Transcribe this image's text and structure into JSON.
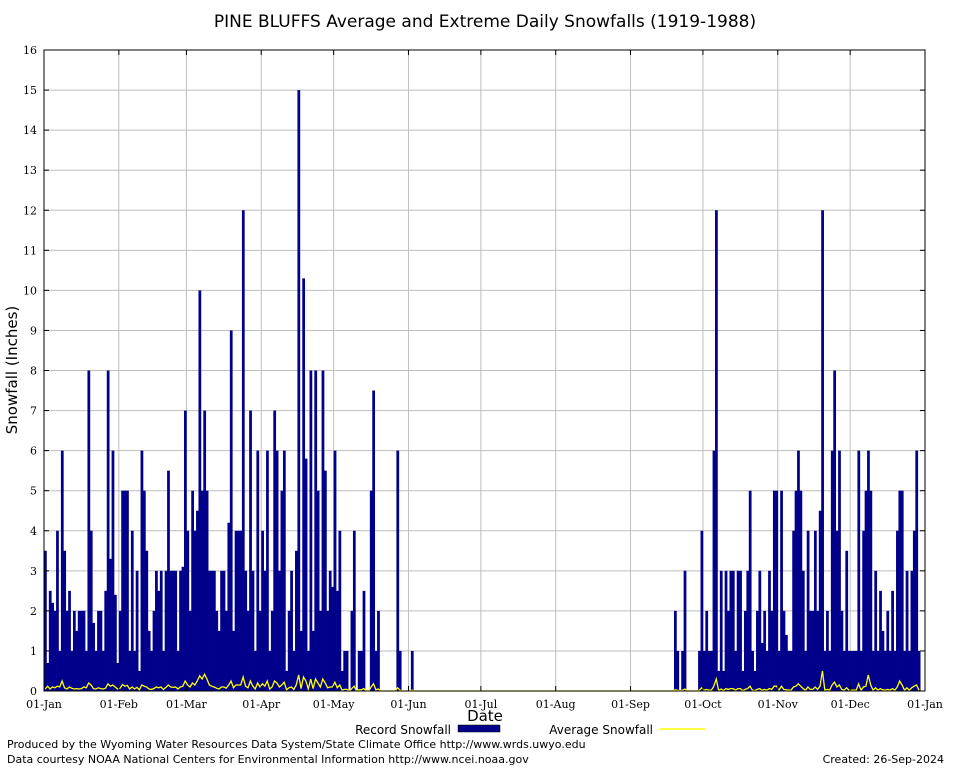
{
  "chart_data": {
    "type": "bar",
    "title": "PINE BLUFFS Average and Extreme Daily Snowfalls (1919-1988)",
    "xlabel": "Date",
    "ylabel": "Snowfall (Inches)",
    "ylim": [
      0,
      16
    ],
    "yticks": [
      "0",
      "1",
      "2",
      "3",
      "4",
      "5",
      "6",
      "7",
      "8",
      "9",
      "10",
      "11",
      "12",
      "13",
      "14",
      "15",
      "16"
    ],
    "xticks": [
      "01-Jan",
      "01-Feb",
      "01-Mar",
      "01-Apr",
      "01-May",
      "01-Jun",
      "01-Jul",
      "01-Aug",
      "01-Sep",
      "01-Oct",
      "01-Nov",
      "01-Dec",
      "01-Jan"
    ],
    "xtick_days": [
      0,
      31,
      59,
      90,
      120,
      151,
      181,
      212,
      243,
      273,
      304,
      334,
      365
    ],
    "grid": true,
    "legend": {
      "placement": "bottom-center",
      "record_label": "Record Snowfall",
      "average_label": "Average Snowfall"
    },
    "colors": {
      "record": "#00008b",
      "average": "#ffff00",
      "grid": "#bebebe"
    },
    "series": [
      {
        "name": "Record Snowfall",
        "values": [
          3.5,
          0.7,
          2.5,
          2.2,
          2,
          4,
          1,
          6,
          3.5,
          2,
          2.5,
          1,
          2,
          1.5,
          2,
          2,
          2,
          1,
          8,
          4,
          1.7,
          1,
          2,
          2,
          1,
          2.5,
          8,
          3.3,
          6,
          2.4,
          0.7,
          2,
          5,
          5,
          5,
          1,
          4,
          1,
          3,
          0.5,
          6,
          5,
          3.5,
          1.5,
          1,
          2,
          3,
          2.5,
          3,
          1,
          3,
          5.5,
          3,
          3,
          3,
          1,
          3,
          3.1,
          7,
          4,
          2,
          5,
          4,
          4.5,
          10,
          5,
          7,
          5,
          3,
          3,
          3,
          2,
          1.5,
          3,
          3,
          2,
          4.2,
          9,
          1.5,
          4,
          4,
          4,
          12,
          3,
          2,
          7,
          3,
          1,
          6,
          2,
          4,
          3,
          6,
          1,
          2,
          7,
          6,
          3,
          5,
          6,
          0.5,
          2,
          3,
          1,
          3.5,
          15,
          1.5,
          10.3,
          5.8,
          1,
          8,
          1.5,
          8,
          5,
          2,
          8,
          5.5,
          2,
          3,
          2.6,
          6,
          2.5,
          4,
          0.5,
          1,
          1,
          0,
          2,
          4,
          0,
          1,
          1,
          2.5,
          0,
          0,
          5,
          7.5,
          1,
          2,
          0,
          0,
          0,
          0,
          0,
          0,
          0,
          6,
          1,
          0,
          0,
          0,
          0,
          1,
          0,
          0,
          0,
          0,
          0,
          0,
          0,
          0,
          0,
          0,
          0,
          0,
          0,
          0,
          0,
          0,
          0,
          0,
          0,
          0,
          0,
          0,
          0,
          0,
          0,
          0,
          0,
          0,
          0,
          0,
          0,
          0,
          0,
          0,
          0,
          0,
          0,
          0,
          0,
          0,
          0,
          0,
          0,
          0,
          0,
          0,
          0,
          0,
          0,
          0,
          0,
          0,
          0,
          0,
          0,
          0,
          0,
          0,
          0,
          0,
          0,
          0,
          0,
          0,
          0,
          0,
          0,
          0,
          0,
          0,
          0,
          0,
          0,
          0,
          0,
          0,
          0,
          0,
          0,
          0,
          0,
          0,
          0,
          0,
          0,
          0,
          0,
          0,
          0,
          0,
          0,
          0,
          0,
          0,
          0,
          0,
          0,
          0,
          0,
          0,
          0,
          0,
          0,
          0,
          0,
          0,
          0,
          0,
          2,
          1,
          0,
          1,
          3,
          0,
          0,
          0,
          0,
          0,
          1,
          4,
          1,
          2,
          1,
          1,
          6,
          12,
          0.5,
          3,
          0.5,
          3,
          2,
          3,
          3,
          1,
          3,
          3,
          0.5,
          2,
          3,
          5,
          1,
          0.5,
          2,
          3,
          1.2,
          2,
          1,
          3,
          2,
          5,
          5,
          1,
          5,
          2,
          1.4,
          1,
          1,
          4,
          5,
          6,
          5,
          3,
          1,
          4,
          2,
          2,
          4,
          2,
          4.5,
          12,
          1,
          2,
          1,
          6,
          8,
          4,
          6,
          2,
          1,
          3.5,
          1,
          1,
          1,
          1,
          6,
          1,
          4,
          5,
          6,
          5,
          1,
          3,
          1,
          2.5,
          1.5,
          1,
          2,
          1,
          2.5,
          1,
          4,
          5,
          5,
          1,
          3,
          1,
          3,
          4,
          6,
          1
        ]
      },
      {
        "name": "Average Snowfall",
        "values": [
          0.05,
          0.12,
          0.05,
          0.1,
          0.08,
          0.12,
          0.1,
          0.25,
          0.08,
          0.05,
          0.1,
          0.07,
          0.05,
          0.06,
          0.05,
          0.06,
          0.1,
          0.08,
          0.2,
          0.15,
          0.06,
          0.05,
          0.08,
          0.06,
          0.05,
          0.07,
          0.18,
          0.12,
          0.15,
          0.1,
          0.05,
          0.07,
          0.16,
          0.12,
          0.14,
          0.05,
          0.1,
          0.05,
          0.09,
          0.03,
          0.15,
          0.12,
          0.1,
          0.05,
          0.04,
          0.06,
          0.1,
          0.08,
          0.1,
          0.04,
          0.09,
          0.15,
          0.1,
          0.09,
          0.1,
          0.05,
          0.1,
          0.12,
          0.25,
          0.15,
          0.1,
          0.2,
          0.15,
          0.25,
          0.38,
          0.3,
          0.42,
          0.3,
          0.15,
          0.12,
          0.1,
          0.07,
          0.05,
          0.1,
          0.1,
          0.07,
          0.15,
          0.25,
          0.08,
          0.15,
          0.15,
          0.15,
          0.35,
          0.12,
          0.08,
          0.25,
          0.12,
          0.05,
          0.2,
          0.1,
          0.18,
          0.12,
          0.25,
          0.05,
          0.1,
          0.25,
          0.2,
          0.1,
          0.15,
          0.22,
          0.03,
          0.08,
          0.1,
          0.04,
          0.15,
          0.4,
          0.06,
          0.35,
          0.25,
          0.05,
          0.3,
          0.06,
          0.3,
          0.2,
          0.1,
          0.3,
          0.2,
          0.08,
          0.1,
          0.1,
          0.22,
          0.08,
          0.15,
          0.02,
          0.04,
          0.04,
          0,
          0.06,
          0.12,
          0,
          0.03,
          0.03,
          0.06,
          0,
          0,
          0.1,
          0.18,
          0.03,
          0.05,
          0,
          0,
          0,
          0,
          0,
          0,
          0,
          0.08,
          0.02,
          0,
          0,
          0,
          0,
          0.02,
          0,
          0,
          0,
          0,
          0,
          0,
          0,
          0,
          0,
          0,
          0,
          0,
          0,
          0,
          0,
          0,
          0,
          0,
          0,
          0,
          0,
          0,
          0,
          0,
          0,
          0,
          0,
          0,
          0,
          0,
          0,
          0,
          0,
          0,
          0,
          0,
          0,
          0,
          0,
          0,
          0,
          0,
          0,
          0,
          0,
          0,
          0,
          0,
          0,
          0,
          0,
          0,
          0,
          0,
          0,
          0,
          0,
          0,
          0,
          0,
          0,
          0,
          0,
          0,
          0,
          0,
          0,
          0,
          0,
          0,
          0,
          0,
          0,
          0,
          0,
          0,
          0,
          0,
          0,
          0,
          0,
          0,
          0,
          0,
          0,
          0,
          0,
          0,
          0,
          0,
          0,
          0,
          0,
          0,
          0,
          0,
          0,
          0,
          0,
          0,
          0,
          0,
          0,
          0,
          0,
          0,
          0,
          0,
          0.03,
          0.02,
          0,
          0.02,
          0.05,
          0,
          0,
          0,
          0,
          0,
          0.02,
          0.08,
          0.02,
          0.04,
          0.02,
          0.02,
          0.12,
          0.3,
          0.01,
          0.05,
          0.01,
          0.06,
          0.04,
          0.06,
          0.06,
          0.02,
          0.06,
          0.06,
          0.01,
          0.04,
          0.06,
          0.12,
          0.02,
          0.01,
          0.04,
          0.06,
          0.02,
          0.04,
          0.02,
          0.06,
          0.04,
          0.12,
          0.12,
          0.02,
          0.12,
          0.04,
          0.03,
          0.02,
          0.02,
          0.1,
          0.12,
          0.18,
          0.12,
          0.06,
          0.02,
          0.1,
          0.04,
          0.04,
          0.1,
          0.04,
          0.12,
          0.5,
          0.02,
          0.04,
          0.02,
          0.15,
          0.22,
          0.1,
          0.15,
          0.04,
          0.02,
          0.08,
          0.02,
          0.02,
          0.02,
          0.02,
          0.18,
          0.02,
          0.1,
          0.12,
          0.4,
          0.15,
          0.02,
          0.08,
          0.02,
          0.06,
          0.03,
          0.02,
          0.04,
          0.02,
          0.06,
          0.02,
          0.1,
          0.25,
          0.15,
          0.02,
          0.08,
          0.02,
          0.08,
          0.12,
          0.15,
          0.02
        ]
      }
    ]
  },
  "footer": {
    "produced_by": "Produced by the Wyoming Water Resources Data System/State Climate Office http://www.wrds.uwyo.edu",
    "courtesy": "Data courtesy NOAA National Centers for Environmental Information http://www.ncei.noaa.gov",
    "created": "Created: 26-Sep-2024"
  }
}
